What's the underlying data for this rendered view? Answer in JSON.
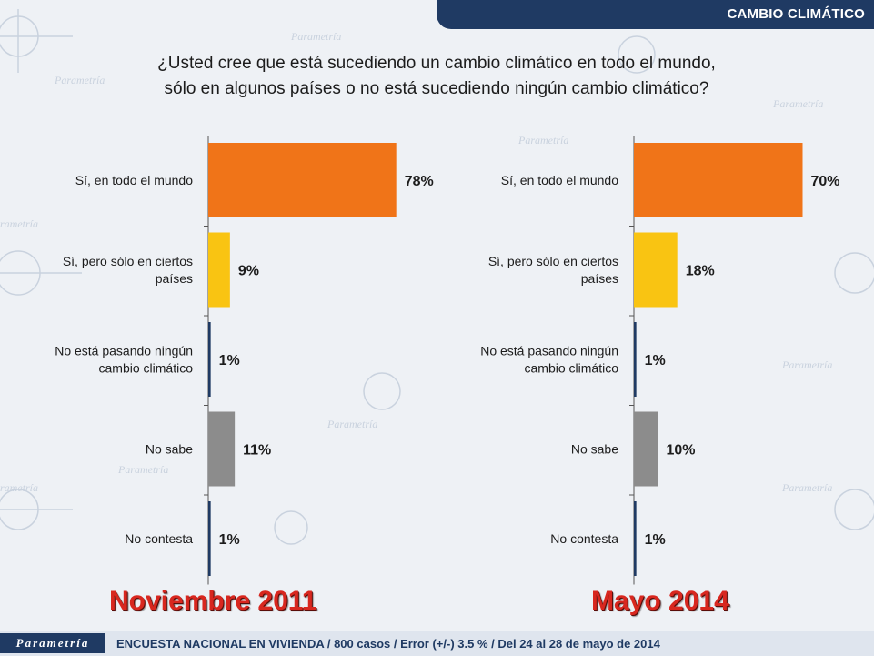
{
  "header": {
    "section_title": "CAMBIO CLIMÁTICO"
  },
  "question": {
    "line1": "¿Usted cree que está sucediendo un cambio climático en todo el mundo,",
    "line2": "sólo en algunos países o no está sucediendo ningún cambio climático?"
  },
  "chart_data": [
    {
      "type": "bar",
      "orientation": "horizontal",
      "title": "Noviembre 2011",
      "categories": [
        "Sí, en todo el mundo",
        "Sí, pero sólo en ciertos países",
        "No está pasando ningún cambio climático",
        "No sabe",
        "No contesta"
      ],
      "values": [
        78,
        9,
        1,
        11,
        1
      ],
      "labels": [
        "78%",
        "9%",
        "1%",
        "11%",
        "1%"
      ],
      "colors": [
        "#f07418",
        "#f9c412",
        "#1f3a63",
        "#8c8c8c",
        "#1f3a63"
      ],
      "xlim": [
        0,
        100
      ]
    },
    {
      "type": "bar",
      "orientation": "horizontal",
      "title": "Mayo 2014",
      "categories": [
        "Sí, en todo el mundo",
        "Sí, pero sólo en ciertos países",
        "No está pasando ningún cambio climático",
        "No sabe",
        "No contesta"
      ],
      "values": [
        70,
        18,
        1,
        10,
        1
      ],
      "labels": [
        "70%",
        "18%",
        "1%",
        "10%",
        "1%"
      ],
      "colors": [
        "#f07418",
        "#f9c412",
        "#1f3a63",
        "#8c8c8c",
        "#1f3a63"
      ],
      "xlim": [
        0,
        100
      ]
    }
  ],
  "footer": {
    "logo": "Parametría",
    "text": "ENCUESTA NACIONAL EN VIVIENDA / 800 casos / Error (+/-) 3.5 % / Del 24 al 28 de mayo de 2014"
  }
}
